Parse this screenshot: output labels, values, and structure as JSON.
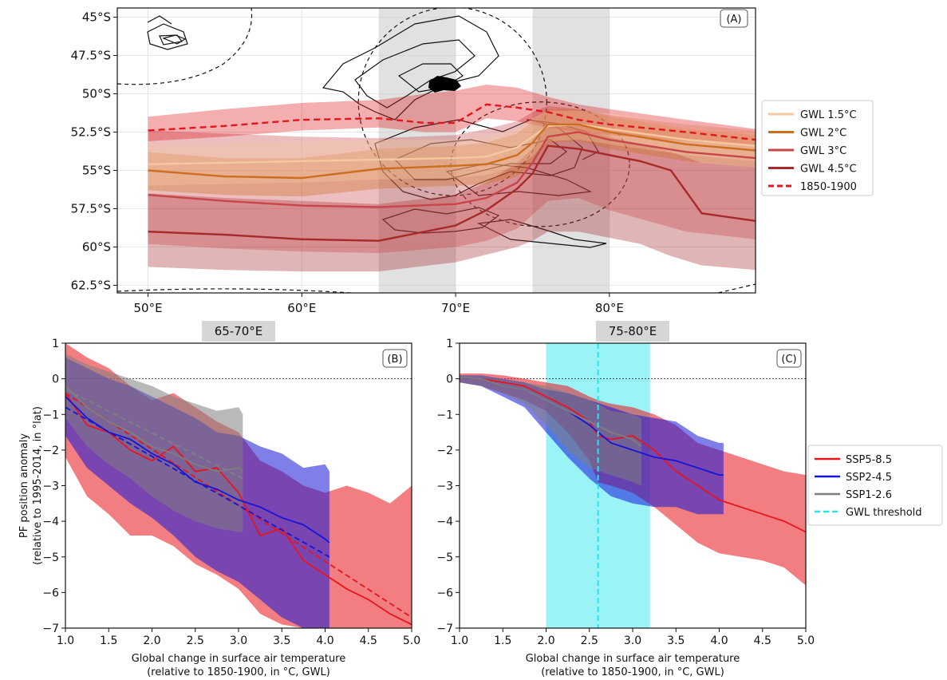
{
  "chart_data": [
    {
      "type": "line",
      "panel_label": "(A)",
      "title": "",
      "x_ticks": [
        "50°E",
        "60°E",
        "70°E",
        "80°E"
      ],
      "y_ticks": [
        "45°S",
        "47.5°S",
        "50°S",
        "52.5°S",
        "55°S",
        "57.5°S",
        "60°S",
        "62.5°S"
      ],
      "xlim": [
        48,
        89.5
      ],
      "ylim": [
        -63,
        -44.4
      ],
      "shaded_longitude_bands": [
        [
          65,
          70
        ],
        [
          75,
          80
        ]
      ],
      "grid": true,
      "legend_position": "right",
      "series": [
        {
          "name": "GWL 1.5°C",
          "color": "#f5c9a0",
          "style": "solid",
          "x": [
            50,
            55,
            60,
            65,
            70,
            72,
            74,
            75,
            76,
            78,
            80,
            85,
            89.5
          ],
          "y": [
            -54.6,
            -54.5,
            -54.4,
            -54.3,
            -54.2,
            -54.1,
            -53.5,
            -52.8,
            -52.1,
            -52.0,
            -52.3,
            -53.0,
            -53.4
          ],
          "band": [
            [
              -53.3,
              -56.0
            ],
            [
              -53.2,
              -55.9
            ],
            [
              -53.1,
              -55.8
            ],
            [
              -53.0,
              -55.6
            ],
            [
              -53.0,
              -55.5
            ],
            [
              -52.8,
              -55.3
            ],
            [
              -52.3,
              -54.7
            ],
            [
              -51.6,
              -54.1
            ],
            [
              -51.1,
              -53.1
            ],
            [
              -51.1,
              -53.0
            ],
            [
              -51.3,
              -53.3
            ],
            [
              -52.0,
              -54.0
            ],
            [
              -52.4,
              -54.4
            ]
          ]
        },
        {
          "name": "GWL 2°C",
          "color": "#cc6e1e",
          "style": "solid",
          "x": [
            50,
            55,
            60,
            65,
            70,
            72,
            74,
            75,
            76,
            78,
            80,
            85,
            89.5
          ],
          "y": [
            -55.0,
            -55.4,
            -55.5,
            -54.9,
            -54.7,
            -54.6,
            -54.0,
            -53.2,
            -52.0,
            -52.0,
            -52.5,
            -53.3,
            -53.7
          ],
          "band": [
            [
              -53.8,
              -56.3
            ],
            [
              -54.2,
              -56.6
            ],
            [
              -54.2,
              -56.7
            ],
            [
              -53.6,
              -56.2
            ],
            [
              -53.4,
              -56.0
            ],
            [
              -53.2,
              -55.9
            ],
            [
              -52.6,
              -55.4
            ],
            [
              -51.8,
              -54.6
            ],
            [
              -51.0,
              -53.2
            ],
            [
              -51.0,
              -53.1
            ],
            [
              -51.5,
              -53.6
            ],
            [
              -52.3,
              -54.4
            ],
            [
              -52.7,
              -54.8
            ]
          ]
        },
        {
          "name": "GWL 3°C",
          "color": "#c8464a",
          "style": "solid",
          "x": [
            50,
            55,
            60,
            65,
            70,
            72,
            74,
            75,
            76,
            78,
            80,
            85,
            89.5
          ],
          "y": [
            -56.6,
            -57.0,
            -57.3,
            -57.4,
            -57.2,
            -56.8,
            -55.8,
            -54.5,
            -52.8,
            -52.5,
            -53.0,
            -53.8,
            -54.2
          ],
          "band": [
            [
              -52.4,
              -59.8
            ],
            [
              -52.6,
              -60.1
            ],
            [
              -52.8,
              -60.3
            ],
            [
              -52.9,
              -60.4
            ],
            [
              -52.7,
              -60.0
            ],
            [
              -52.3,
              -59.6
            ],
            [
              -51.8,
              -58.8
            ],
            [
              -51.2,
              -57.9
            ],
            [
              -50.8,
              -57.0
            ],
            [
              -51.0,
              -56.8
            ],
            [
              -51.4,
              -57.6
            ],
            [
              -52.0,
              -59.0
            ],
            [
              -52.4,
              -59.5
            ]
          ]
        },
        {
          "name": "GWL 4.5°C",
          "color": "#a62a2a",
          "style": "solid",
          "x": [
            50,
            55,
            60,
            65,
            70,
            72,
            74,
            75,
            76,
            78,
            80,
            82,
            84,
            86,
            89.5
          ],
          "y": [
            -59.0,
            -59.2,
            -59.5,
            -59.6,
            -58.6,
            -57.6,
            -56.2,
            -55.2,
            -53.4,
            -53.6,
            -54.0,
            -54.4,
            -55.0,
            -57.8,
            -58.3
          ],
          "band": [
            [
              -56.5,
              -61.3
            ],
            [
              -56.8,
              -61.5
            ],
            [
              -57.0,
              -61.6
            ],
            [
              -57.2,
              -61.6
            ],
            [
              -56.6,
              -61.0
            ],
            [
              -55.8,
              -60.5
            ],
            [
              -54.5,
              -60.0
            ],
            [
              -53.6,
              -59.6
            ],
            [
              -52.0,
              -59.0
            ],
            [
              -52.3,
              -59.0
            ],
            [
              -52.8,
              -59.4
            ],
            [
              -53.3,
              -59.8
            ],
            [
              -53.8,
              -60.6
            ],
            [
              -54.5,
              -61.2
            ],
            [
              -54.8,
              -61.5
            ]
          ]
        },
        {
          "name": "1850-1900",
          "color": "#e0181c",
          "style": "dashed",
          "x": [
            50,
            55,
            60,
            65,
            68,
            70,
            72,
            74,
            76,
            78,
            80,
            85,
            89.5
          ],
          "y": [
            -52.4,
            -52.1,
            -51.7,
            -51.6,
            -51.9,
            -51.9,
            -50.7,
            -50.9,
            -51.2,
            -51.7,
            -52.0,
            -52.5,
            -53.0
          ],
          "band": [
            [
              -51.5,
              -53.1
            ],
            [
              -51.0,
              -52.8
            ],
            [
              -50.6,
              -52.4
            ],
            [
              -50.4,
              -52.2
            ],
            [
              -50.0,
              -52.5
            ],
            [
              -49.8,
              -52.5
            ],
            [
              -49.4,
              -51.6
            ],
            [
              -49.6,
              -51.8
            ],
            [
              -50.2,
              -52.2
            ],
            [
              -50.7,
              -52.5
            ],
            [
              -51.0,
              -52.7
            ],
            [
              -51.7,
              -53.1
            ],
            [
              -52.3,
              -53.4
            ]
          ]
        }
      ]
    },
    {
      "type": "line",
      "panel_label": "(B)",
      "title": "65-70°E",
      "xlabel": [
        "Global change in surface air temperature",
        "(relative to 1850-1900, in °C, GWL)"
      ],
      "ylabel": [
        "PF position anomaly",
        "(relative to 1995-2014, in °lat)"
      ],
      "xlim": [
        1.0,
        5.0
      ],
      "ylim": [
        -7,
        1
      ],
      "x_ticks": [
        "1.0",
        "1.5",
        "2.0",
        "2.5",
        "3.0",
        "3.5",
        "4.0",
        "4.5",
        "5.0"
      ],
      "y_ticks": [
        "1",
        "0",
        "−1",
        "−2",
        "−3",
        "−4",
        "−5",
        "−6",
        "−7"
      ],
      "series": [
        {
          "name": "SSP5-8.5",
          "color": "#e8141c",
          "x": [
            1.0,
            1.25,
            1.5,
            1.75,
            2.0,
            2.25,
            2.5,
            2.75,
            3.0,
            3.25,
            3.5,
            3.75,
            4.0,
            4.25,
            4.5,
            4.75,
            5.0
          ],
          "y": [
            -0.4,
            -1.3,
            -1.5,
            -2.0,
            -2.3,
            -1.9,
            -2.6,
            -2.5,
            -3.2,
            -4.4,
            -4.2,
            -5.1,
            -5.5,
            -5.9,
            -6.2,
            -6.6,
            -6.9
          ],
          "upper": [
            1.0,
            0.6,
            0.3,
            -0.2,
            -0.6,
            -0.4,
            -0.8,
            -1.2,
            -1.5,
            -2.3,
            -2.6,
            -3.0,
            -3.2,
            -3.0,
            -3.2,
            -3.5,
            -3.0
          ],
          "lower": [
            -2.2,
            -3.3,
            -3.8,
            -4.4,
            -4.4,
            -4.7,
            -5.2,
            -5.5,
            -5.9,
            -6.6,
            -6.9,
            -7.0,
            -7.0,
            -7.0,
            -7.0,
            -7.0,
            -7.0
          ],
          "trend": [
            [
              1.0,
              -0.4
            ],
            [
              5.0,
              -6.7
            ]
          ]
        },
        {
          "name": "SSP2-4.5",
          "color": "#1515d8",
          "x": [
            1.0,
            1.25,
            1.5,
            1.75,
            2.0,
            2.25,
            2.5,
            2.75,
            3.0,
            3.25,
            3.5,
            3.75,
            4.0,
            4.05
          ],
          "y": [
            -0.5,
            -1.1,
            -1.5,
            -1.7,
            -2.1,
            -2.4,
            -2.9,
            -3.1,
            -3.4,
            -3.6,
            -3.9,
            -4.1,
            -4.5,
            -4.6
          ],
          "upper": [
            0.6,
            0.3,
            0.0,
            -0.2,
            -0.5,
            -0.8,
            -1.1,
            -1.5,
            -1.6,
            -1.9,
            -2.1,
            -2.5,
            -2.4,
            -2.6
          ],
          "lower": [
            -1.6,
            -2.5,
            -3.0,
            -3.5,
            -3.9,
            -4.4,
            -5.0,
            -5.4,
            -5.7,
            -6.2,
            -6.7,
            -7.0,
            -7.0,
            -7.0
          ],
          "trend": [
            [
              1.0,
              -0.8
            ],
            [
              4.05,
              -5.0
            ]
          ]
        },
        {
          "name": "SSP1-2.6",
          "color": "#7f7f7f",
          "x": [
            1.0,
            1.25,
            1.5,
            1.75,
            2.0,
            2.25,
            2.5,
            2.75,
            3.0,
            3.05
          ],
          "y": [
            -0.2,
            -0.8,
            -1.2,
            -1.5,
            -1.9,
            -2.1,
            -2.4,
            -2.6,
            -2.5,
            -2.6
          ],
          "upper": [
            0.7,
            0.4,
            0.2,
            0.0,
            -0.2,
            -0.5,
            -0.7,
            -0.9,
            -0.8,
            -1.0
          ],
          "lower": [
            -1.1,
            -1.9,
            -2.4,
            -2.8,
            -3.3,
            -3.7,
            -4.0,
            -4.2,
            -4.3,
            -4.3
          ],
          "trend": [
            [
              1.0,
              -0.3
            ],
            [
              3.05,
              -2.8
            ]
          ]
        }
      ]
    },
    {
      "type": "line",
      "panel_label": "(C)",
      "title": "75-80°E",
      "xlabel": [
        "Global change in surface air temperature",
        "(relative to 1850-1900, in °C, GWL)"
      ],
      "xlim": [
        1.0,
        5.0
      ],
      "ylim": [
        -7,
        1
      ],
      "x_ticks": [
        "1.0",
        "1.5",
        "2.0",
        "2.5",
        "3.0",
        "3.5",
        "4.0",
        "4.5",
        "5.0"
      ],
      "y_ticks": [
        "1",
        "0",
        "−1",
        "−2",
        "−3",
        "−4",
        "−5",
        "−6",
        "−7"
      ],
      "gwl_threshold": 2.6,
      "gwl_range": [
        2.0,
        3.2
      ],
      "series": [
        {
          "name": "SSP5-8.5",
          "color": "#e8141c",
          "x": [
            1.0,
            1.25,
            1.5,
            1.75,
            2.0,
            2.25,
            2.5,
            2.6,
            2.75,
            3.0,
            3.25,
            3.5,
            3.75,
            4.0,
            4.25,
            4.5,
            4.75,
            5.0
          ],
          "y": [
            0.05,
            0.0,
            -0.1,
            -0.2,
            -0.5,
            -0.8,
            -1.2,
            -1.6,
            -1.7,
            -1.6,
            -2.0,
            -2.6,
            -3.0,
            -3.4,
            -3.6,
            -3.8,
            -4.0,
            -4.3
          ],
          "upper": [
            0.15,
            0.15,
            0.1,
            0.0,
            -0.1,
            -0.2,
            -0.5,
            -0.6,
            -0.7,
            -0.8,
            -1.0,
            -1.3,
            -1.8,
            -2.0,
            -2.2,
            -2.4,
            -2.6,
            -2.7
          ],
          "lower": [
            -0.1,
            -0.2,
            -0.4,
            -0.6,
            -0.9,
            -1.5,
            -2.3,
            -2.9,
            -3.0,
            -3.2,
            -3.6,
            -4.1,
            -4.6,
            -4.9,
            -5.0,
            -5.1,
            -5.3,
            -5.8
          ]
        },
        {
          "name": "SSP2-4.5",
          "color": "#1515d8",
          "x": [
            1.0,
            1.25,
            1.5,
            1.75,
            2.0,
            2.25,
            2.5,
            2.75,
            3.0,
            3.25,
            3.5,
            3.75,
            4.0,
            4.05
          ],
          "y": [
            0.05,
            0.0,
            -0.2,
            -0.3,
            -0.6,
            -0.9,
            -1.3,
            -1.8,
            -2.0,
            -2.2,
            -2.3,
            -2.5,
            -2.7,
            -2.7
          ],
          "upper": [
            0.1,
            0.1,
            0.0,
            -0.1,
            -0.3,
            -0.4,
            -0.6,
            -0.8,
            -1.0,
            -1.1,
            -1.2,
            -1.6,
            -1.8,
            -1.8
          ],
          "lower": [
            -0.1,
            -0.2,
            -0.5,
            -0.8,
            -1.5,
            -2.2,
            -2.8,
            -3.3,
            -3.5,
            -3.6,
            -3.6,
            -3.8,
            -3.8,
            -3.8
          ]
        },
        {
          "name": "SSP1-2.6",
          "color": "#7f7f7f",
          "x": [
            1.0,
            1.25,
            1.5,
            1.75,
            2.0,
            2.25,
            2.5,
            2.75,
            3.0,
            3.1
          ],
          "y": [
            0.05,
            0.0,
            -0.2,
            -0.3,
            -0.6,
            -0.9,
            -1.2,
            -1.5,
            -1.7,
            -1.9
          ],
          "upper": [
            0.1,
            0.1,
            0.0,
            -0.1,
            -0.2,
            -0.4,
            -0.6,
            -0.9,
            -1.0,
            -1.1
          ],
          "lower": [
            -0.1,
            -0.2,
            -0.4,
            -0.7,
            -1.3,
            -2.0,
            -2.5,
            -2.7,
            -2.9,
            -3.0
          ]
        }
      ]
    }
  ],
  "legend_bottom": {
    "entries": [
      {
        "name": "SSP5-8.5",
        "color": "#e8141c",
        "style": "solid"
      },
      {
        "name": "SSP2-4.5",
        "color": "#1515d8",
        "style": "solid"
      },
      {
        "name": "SSP1-2.6",
        "color": "#7f7f7f",
        "style": "solid"
      },
      {
        "name": "GWL threshold",
        "color": "#22e5ee",
        "style": "dashed"
      }
    ]
  }
}
